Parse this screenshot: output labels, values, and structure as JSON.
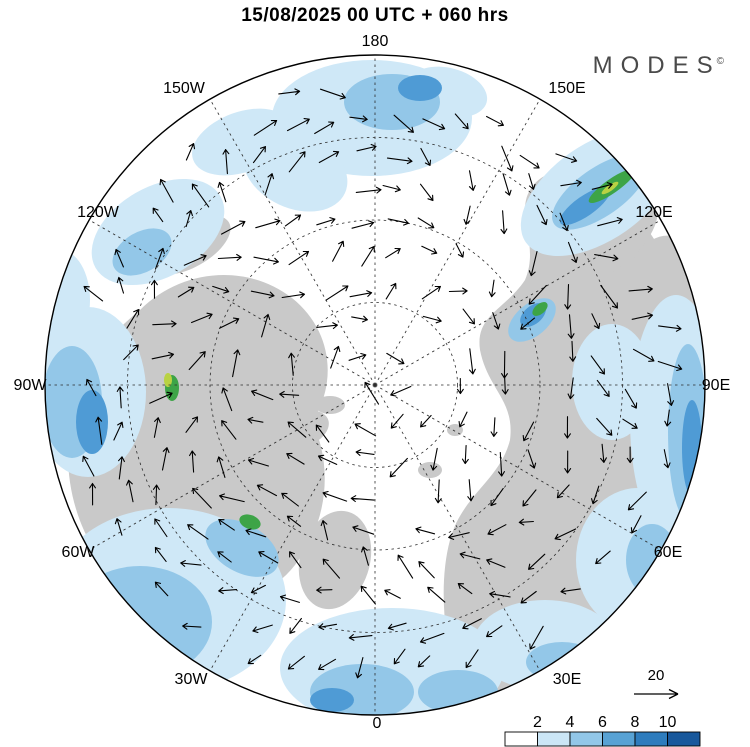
{
  "title": "15/08/2025  00 UTC  + 060 hrs",
  "logo": {
    "text": "MODES",
    "copyright": "©"
  },
  "map": {
    "projection_labels": [
      "180",
      "150W",
      "150E",
      "120W",
      "120E",
      "90W",
      "90E",
      "60W",
      "60E",
      "30W",
      "30E",
      "0"
    ]
  },
  "ref_vector": {
    "label": "20"
  },
  "colorbar": {
    "tick_labels": [
      "2",
      "4",
      "6",
      "8",
      "10"
    ],
    "colors": [
      "#ffffff",
      "#cbe6f6",
      "#92c7e8",
      "#58a2d4",
      "#2e7cbd",
      "#18589c"
    ]
  },
  "palette": {
    "land": "#c9c9c9",
    "shade_light": "#cfe8f7",
    "shade_medium": "#93c7e8",
    "shade_dark": "#4f9bd5",
    "shade_green": "#3da447",
    "shade_yellow": "#b9d243",
    "arrow": "#000000"
  },
  "chart_data": {
    "type": "heatmap",
    "title": "15/08/2025  00 UTC  + 060 hrs",
    "projection": "north polar stereographic",
    "longitude_labels": [
      "180",
      "150W",
      "150E",
      "120W",
      "120E",
      "90W",
      "90E",
      "60W",
      "60E",
      "30W",
      "30E",
      "0"
    ],
    "colorbar_ticks": [
      2,
      4,
      6,
      8,
      10
    ],
    "reference_vector_value": 20,
    "overlays": [
      "shaded magnitude field (blue scale)",
      "flow arrows",
      "gray land mask",
      "dashed graticule"
    ]
  }
}
